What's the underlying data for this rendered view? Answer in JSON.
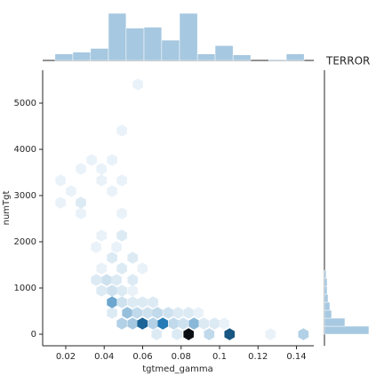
{
  "chart_data": {
    "type": "hexbin",
    "title": "TERROR",
    "x_label": "tgtmed_gamma",
    "y_label": "numTgt",
    "xlim": [
      0.008,
      0.149
    ],
    "ylim": [
      -250,
      5712
    ],
    "xticks": [
      0.02,
      0.04,
      0.06,
      0.08,
      0.1,
      0.12,
      0.14
    ],
    "yticks": [
      0,
      1000,
      2000,
      3000,
      4000,
      5000
    ],
    "cmap": [
      "#eaf2f9",
      "#1f77b4",
      "#0b0f14"
    ],
    "hist_color": "#a6c8e0",
    "x": [
      0.0673,
      0.0779,
      0.0839,
      0.0946,
      0.1052,
      0.1265,
      0.1436,
      0.0492,
      0.0548,
      0.0599,
      0.0654,
      0.0705,
      0.0761,
      0.0811,
      0.0867,
      0.0918,
      0.0974,
      0.1024,
      0.0441,
      0.052,
      0.0571,
      0.0626,
      0.0677,
      0.0733,
      0.0784,
      0.0839,
      0.089,
      0.0441,
      0.0492,
      0.0548,
      0.0599,
      0.0654,
      0.0386,
      0.0441,
      0.0492,
      0.0548,
      0.0358,
      0.0413,
      0.0464,
      0.0548,
      0.0386,
      0.0492,
      0.0599,
      0.0441,
      0.0548,
      0.0358,
      0.0464,
      0.0386,
      0.0492,
      0.0492,
      0.0279,
      0.0173,
      0.0279,
      0.0228,
      0.0441,
      0.0173,
      0.0386,
      0.0492,
      0.0279,
      0.0386,
      0.0335,
      0.0441,
      0.0492,
      0.0575
    ],
    "y": [
      0,
      0,
      0,
      0,
      0,
      0,
      0,
      231,
      231,
      231,
      231,
      231,
      231,
      231,
      231,
      231,
      231,
      231,
      462,
      462,
      462,
      462,
      462,
      462,
      462,
      462,
      462,
      692,
      692,
      692,
      692,
      692,
      942,
      942,
      942,
      942,
      1173,
      1173,
      1173,
      1173,
      1423,
      1423,
      1423,
      1654,
      1654,
      1885,
      1885,
      2135,
      2135,
      2615,
      2615,
      2846,
      2846,
      3096,
      3096,
      3327,
      3327,
      3327,
      3577,
      3577,
      3769,
      3769,
      4404,
      5404
    ],
    "counts": [
      2,
      2,
      30,
      4,
      20,
      1,
      5,
      5,
      6,
      18,
      5,
      15,
      4,
      3,
      8,
      2,
      2,
      1,
      2,
      7,
      4,
      3,
      4,
      3,
      2,
      2,
      1,
      10,
      3,
      2,
      2,
      2,
      2,
      3,
      2,
      1,
      2,
      3,
      2,
      2,
      1,
      2,
      1,
      2,
      2,
      1,
      1,
      1,
      2,
      1,
      1,
      1,
      2,
      1,
      1,
      1,
      1,
      1,
      1,
      1,
      1,
      1,
      1,
      1
    ],
    "top_hist": {
      "bins": [
        0.0144,
        0.0237,
        0.0329,
        0.0422,
        0.0514,
        0.0607,
        0.0699,
        0.0792,
        0.0885,
        0.0977,
        0.107,
        0.1162,
        0.1255,
        0.1347,
        0.144
      ],
      "counts": [
        7,
        9,
        13,
        51,
        35,
        36,
        22,
        51,
        7,
        16,
        6,
        0,
        1,
        7
      ]
    },
    "right_hist": {
      "bins": [
        0,
        173,
        346,
        519,
        692,
        865,
        1038,
        1211,
        1384
      ],
      "counts": [
        50,
        23,
        8,
        6,
        4,
        3,
        3,
        2
      ]
    }
  }
}
